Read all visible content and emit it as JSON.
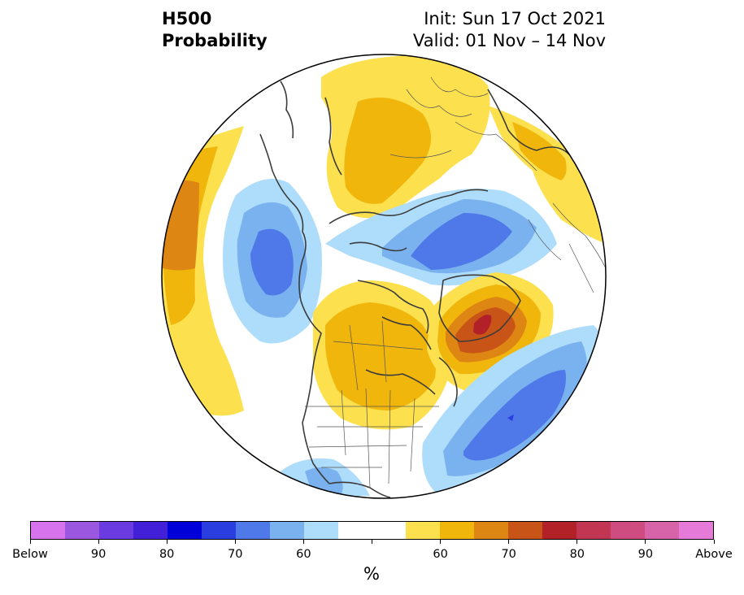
{
  "title": {
    "left_line1": "H500",
    "left_line2": "Probability",
    "right_line1": "Init: Sun 17 Oct 2021",
    "right_line2": "Valid: 01 Nov – 14 Nov"
  },
  "map": {
    "projection": "north-polar-stereographic",
    "anomalies": [
      {
        "region": "western-north-pacific",
        "sign": "below",
        "peak_pct": 70
      },
      {
        "region": "west-of-north-america",
        "sign": "below",
        "peak_pct": 60
      },
      {
        "region": "eurasian-arctic",
        "sign": "below",
        "peak_pct": 70
      },
      {
        "region": "north-atlantic",
        "sign": "below",
        "peak_pct": 70
      },
      {
        "region": "siberia",
        "sign": "above",
        "peak_pct": 60
      },
      {
        "region": "scandinavia-arctic",
        "sign": "above",
        "peak_pct": 60
      },
      {
        "region": "east-asia-edge",
        "sign": "above",
        "peak_pct": 65
      },
      {
        "region": "canada",
        "sign": "above",
        "peak_pct": 65
      },
      {
        "region": "greenland",
        "sign": "above",
        "peak_pct": 80
      }
    ]
  },
  "colorbar": {
    "colors": [
      "#d873ee",
      "#9c57e0",
      "#6a3be0",
      "#4220d8",
      "#0000d8",
      "#2a3ee0",
      "#4f78e8",
      "#7ab2f0",
      "#aedcfb",
      "#ffffff",
      "#ffffff",
      "#fde04e",
      "#f1b60c",
      "#de8613",
      "#c85517",
      "#b22127",
      "#c23653",
      "#cf4c80",
      "#d764a8",
      "#e57ad8"
    ],
    "tick_labels": [
      "Below",
      "90",
      "80",
      "70",
      "60",
      "60",
      "70",
      "80",
      "90",
      "Above"
    ],
    "unit": "%"
  }
}
